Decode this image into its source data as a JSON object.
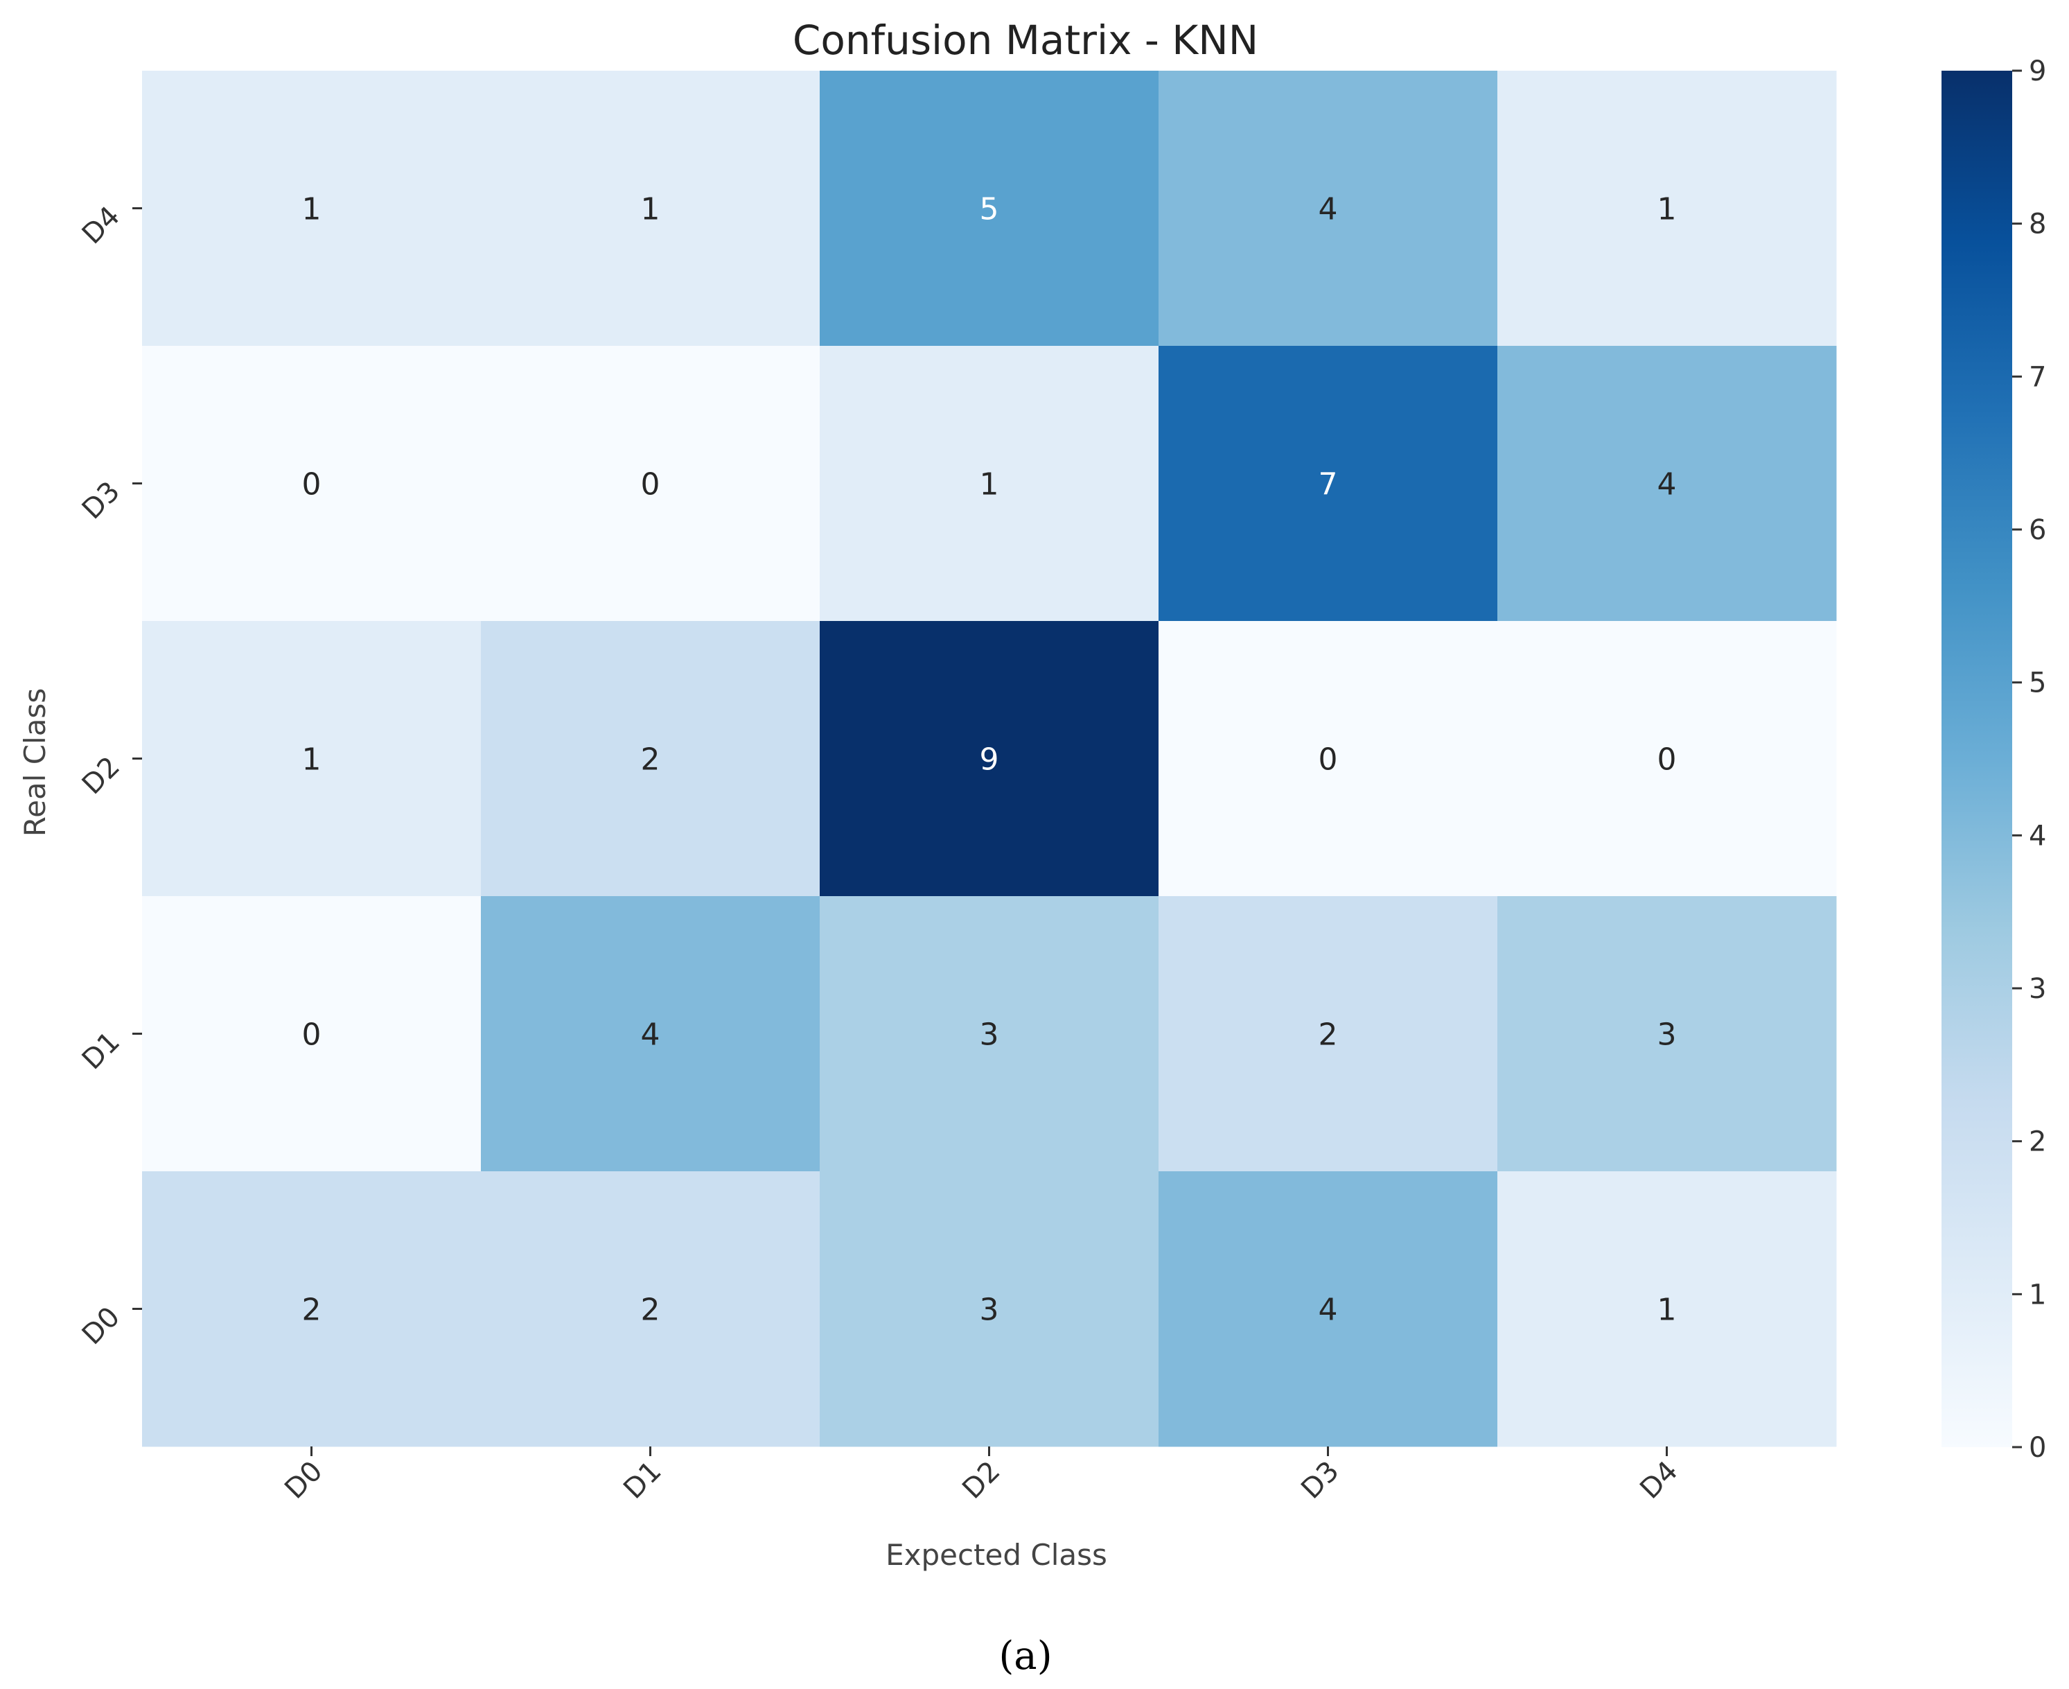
{
  "chart_data": {
    "type": "heatmap",
    "title": "Confusion Matrix - KNN",
    "xlabel": "Expected Class",
    "ylabel": "Real Class",
    "x_categories": [
      "D0",
      "D1",
      "D2",
      "D3",
      "D4"
    ],
    "y_categories": [
      "D4",
      "D3",
      "D2",
      "D1",
      "D0"
    ],
    "values": [
      [
        1,
        1,
        5,
        4,
        1
      ],
      [
        0,
        0,
        1,
        7,
        4
      ],
      [
        1,
        2,
        9,
        0,
        0
      ],
      [
        0,
        4,
        3,
        2,
        3
      ],
      [
        2,
        2,
        3,
        4,
        1
      ]
    ],
    "colorbar": {
      "min": 0,
      "max": 9,
      "ticks": [
        0,
        1,
        2,
        3,
        4,
        5,
        6,
        7,
        8,
        9
      ]
    },
    "colormap": "Blues",
    "colors": {
      "low": "#f7fbff",
      "high": "#08306b"
    }
  },
  "caption": "(a)"
}
